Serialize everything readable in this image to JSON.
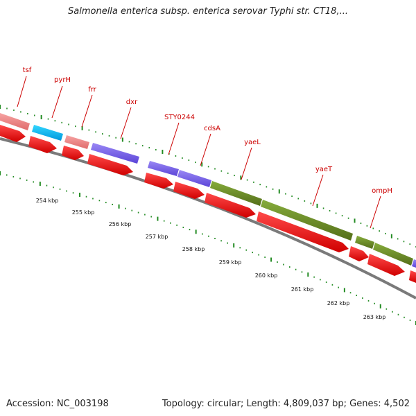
{
  "header": {
    "title": "Salmonella enterica subsp. enterica serovar Typhi str. CT18,..."
  },
  "footer": {
    "accession": "Accession: NC_003198",
    "topology": "Topology: circular; Length: 4,809,037 bp; Genes: 4,502"
  },
  "map": {
    "position_ticks": [
      {
        "label": "254 kbp"
      },
      {
        "label": "255 kbp"
      },
      {
        "label": "256 kbp"
      },
      {
        "label": "257 kbp"
      },
      {
        "label": "258 kbp"
      },
      {
        "label": "259 kbp"
      },
      {
        "label": "260 kbp"
      },
      {
        "label": "261 kbp"
      },
      {
        "label": "262 kbp"
      },
      {
        "label": "263 kbp"
      }
    ],
    "genes": [
      {
        "name": "tsf"
      },
      {
        "name": "pyrH"
      },
      {
        "name": "frr"
      },
      {
        "name": "dxr"
      },
      {
        "name": "STY0244"
      },
      {
        "name": "cdsA"
      },
      {
        "name": "yaeL"
      },
      {
        "name": "yaeT"
      },
      {
        "name": "ompH"
      }
    ],
    "feature_colors": {
      "cds_forward": "#ff0000",
      "pink_feature": "#f08080",
      "cyan_feature": "#00bfff",
      "purple_feature": "#7b68ee",
      "olive_feature": "#6b8e23",
      "backbone": "#808080",
      "ticks": "#228b22",
      "labels": "#cc0000"
    }
  }
}
